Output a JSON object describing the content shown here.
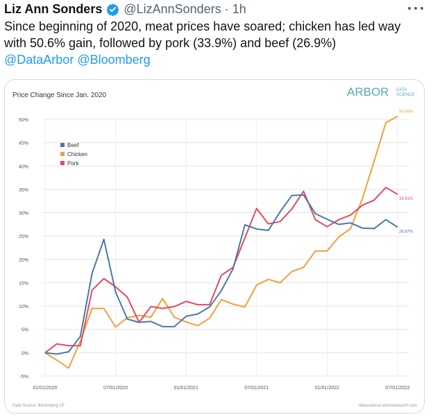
{
  "tweet": {
    "author_name": "Liz Ann Sonders",
    "author_handle": "@LizAnnSonders",
    "separator": "·",
    "time": "1h",
    "line1": "Since beginning of 2020, meat prices have soared; chicken has led way",
    "line2": "with 50.6% gain, followed by pork (33.9%) and beef (26.9%)",
    "mention1": "@DataArbor",
    "mention2": "@Bloomberg"
  },
  "icons": {
    "verified": "verified-badge-icon",
    "more": "more-options-icon"
  },
  "colors": {
    "beef": "#4a78a6",
    "chicken": "#f29f3a",
    "pork": "#e24a5e",
    "link": "#1d9bf0"
  },
  "chart_data": {
    "type": "line",
    "title": "Price Change Since Jan. 2020",
    "logo_text": "ARBOR DATA SCIENCE",
    "ylim": [
      -5,
      50
    ],
    "y_ticks": [
      "-5%",
      "0%",
      "5%",
      "10%",
      "15%",
      "20%",
      "25%",
      "30%",
      "35%",
      "40%",
      "45%",
      "50%"
    ],
    "x_ticks": [
      "01/01/2020",
      "07/01/2020",
      "01/01/2021",
      "07/01/2021",
      "01/01/2022",
      "07/01/2022"
    ],
    "source": "Data Source: Bloomberg LP",
    "website": "datascience.arborresearch.com",
    "grid": true,
    "legend": "top-left",
    "series": [
      {
        "name": "Beef",
        "color": "#4a78a6",
        "end_label": "26.87%",
        "values": [
          0,
          -0.3,
          0.2,
          3.5,
          17,
          24.3,
          13,
          7.2,
          6.5,
          6.7,
          5.6,
          5.6,
          7.8,
          8.3,
          9.8,
          13.3,
          18,
          27.4,
          26.5,
          26.2,
          30.2,
          33.7,
          33.8,
          29.8,
          28.6,
          27.5,
          27.8,
          26.7,
          26.6,
          28.5,
          26.9
        ]
      },
      {
        "name": "Chicken",
        "color": "#f29f3a",
        "end_label": "50.64%",
        "values": [
          0,
          -1.6,
          -3.3,
          2.5,
          9.5,
          9.5,
          5.5,
          7.5,
          8,
          7.6,
          11.6,
          7.6,
          6.6,
          5.8,
          7.4,
          11.4,
          10.4,
          9.8,
          14.5,
          15.7,
          15,
          17.4,
          18.3,
          21.8,
          21.8,
          24.8,
          26.6,
          33,
          41,
          49.3,
          50.64
        ]
      },
      {
        "name": "Pork",
        "color": "#e24a5e",
        "end_label": "33.91%",
        "values": [
          0,
          1.9,
          1.5,
          1.5,
          13.4,
          15.9,
          14.1,
          11.9,
          6.5,
          9.9,
          9.5,
          9.9,
          11,
          10.3,
          10.3,
          16.6,
          18.3,
          24.6,
          30.9,
          27.6,
          28.1,
          30.8,
          34.6,
          28.5,
          27,
          28.5,
          29.5,
          31.6,
          32.7,
          35.4,
          33.91
        ]
      }
    ]
  }
}
